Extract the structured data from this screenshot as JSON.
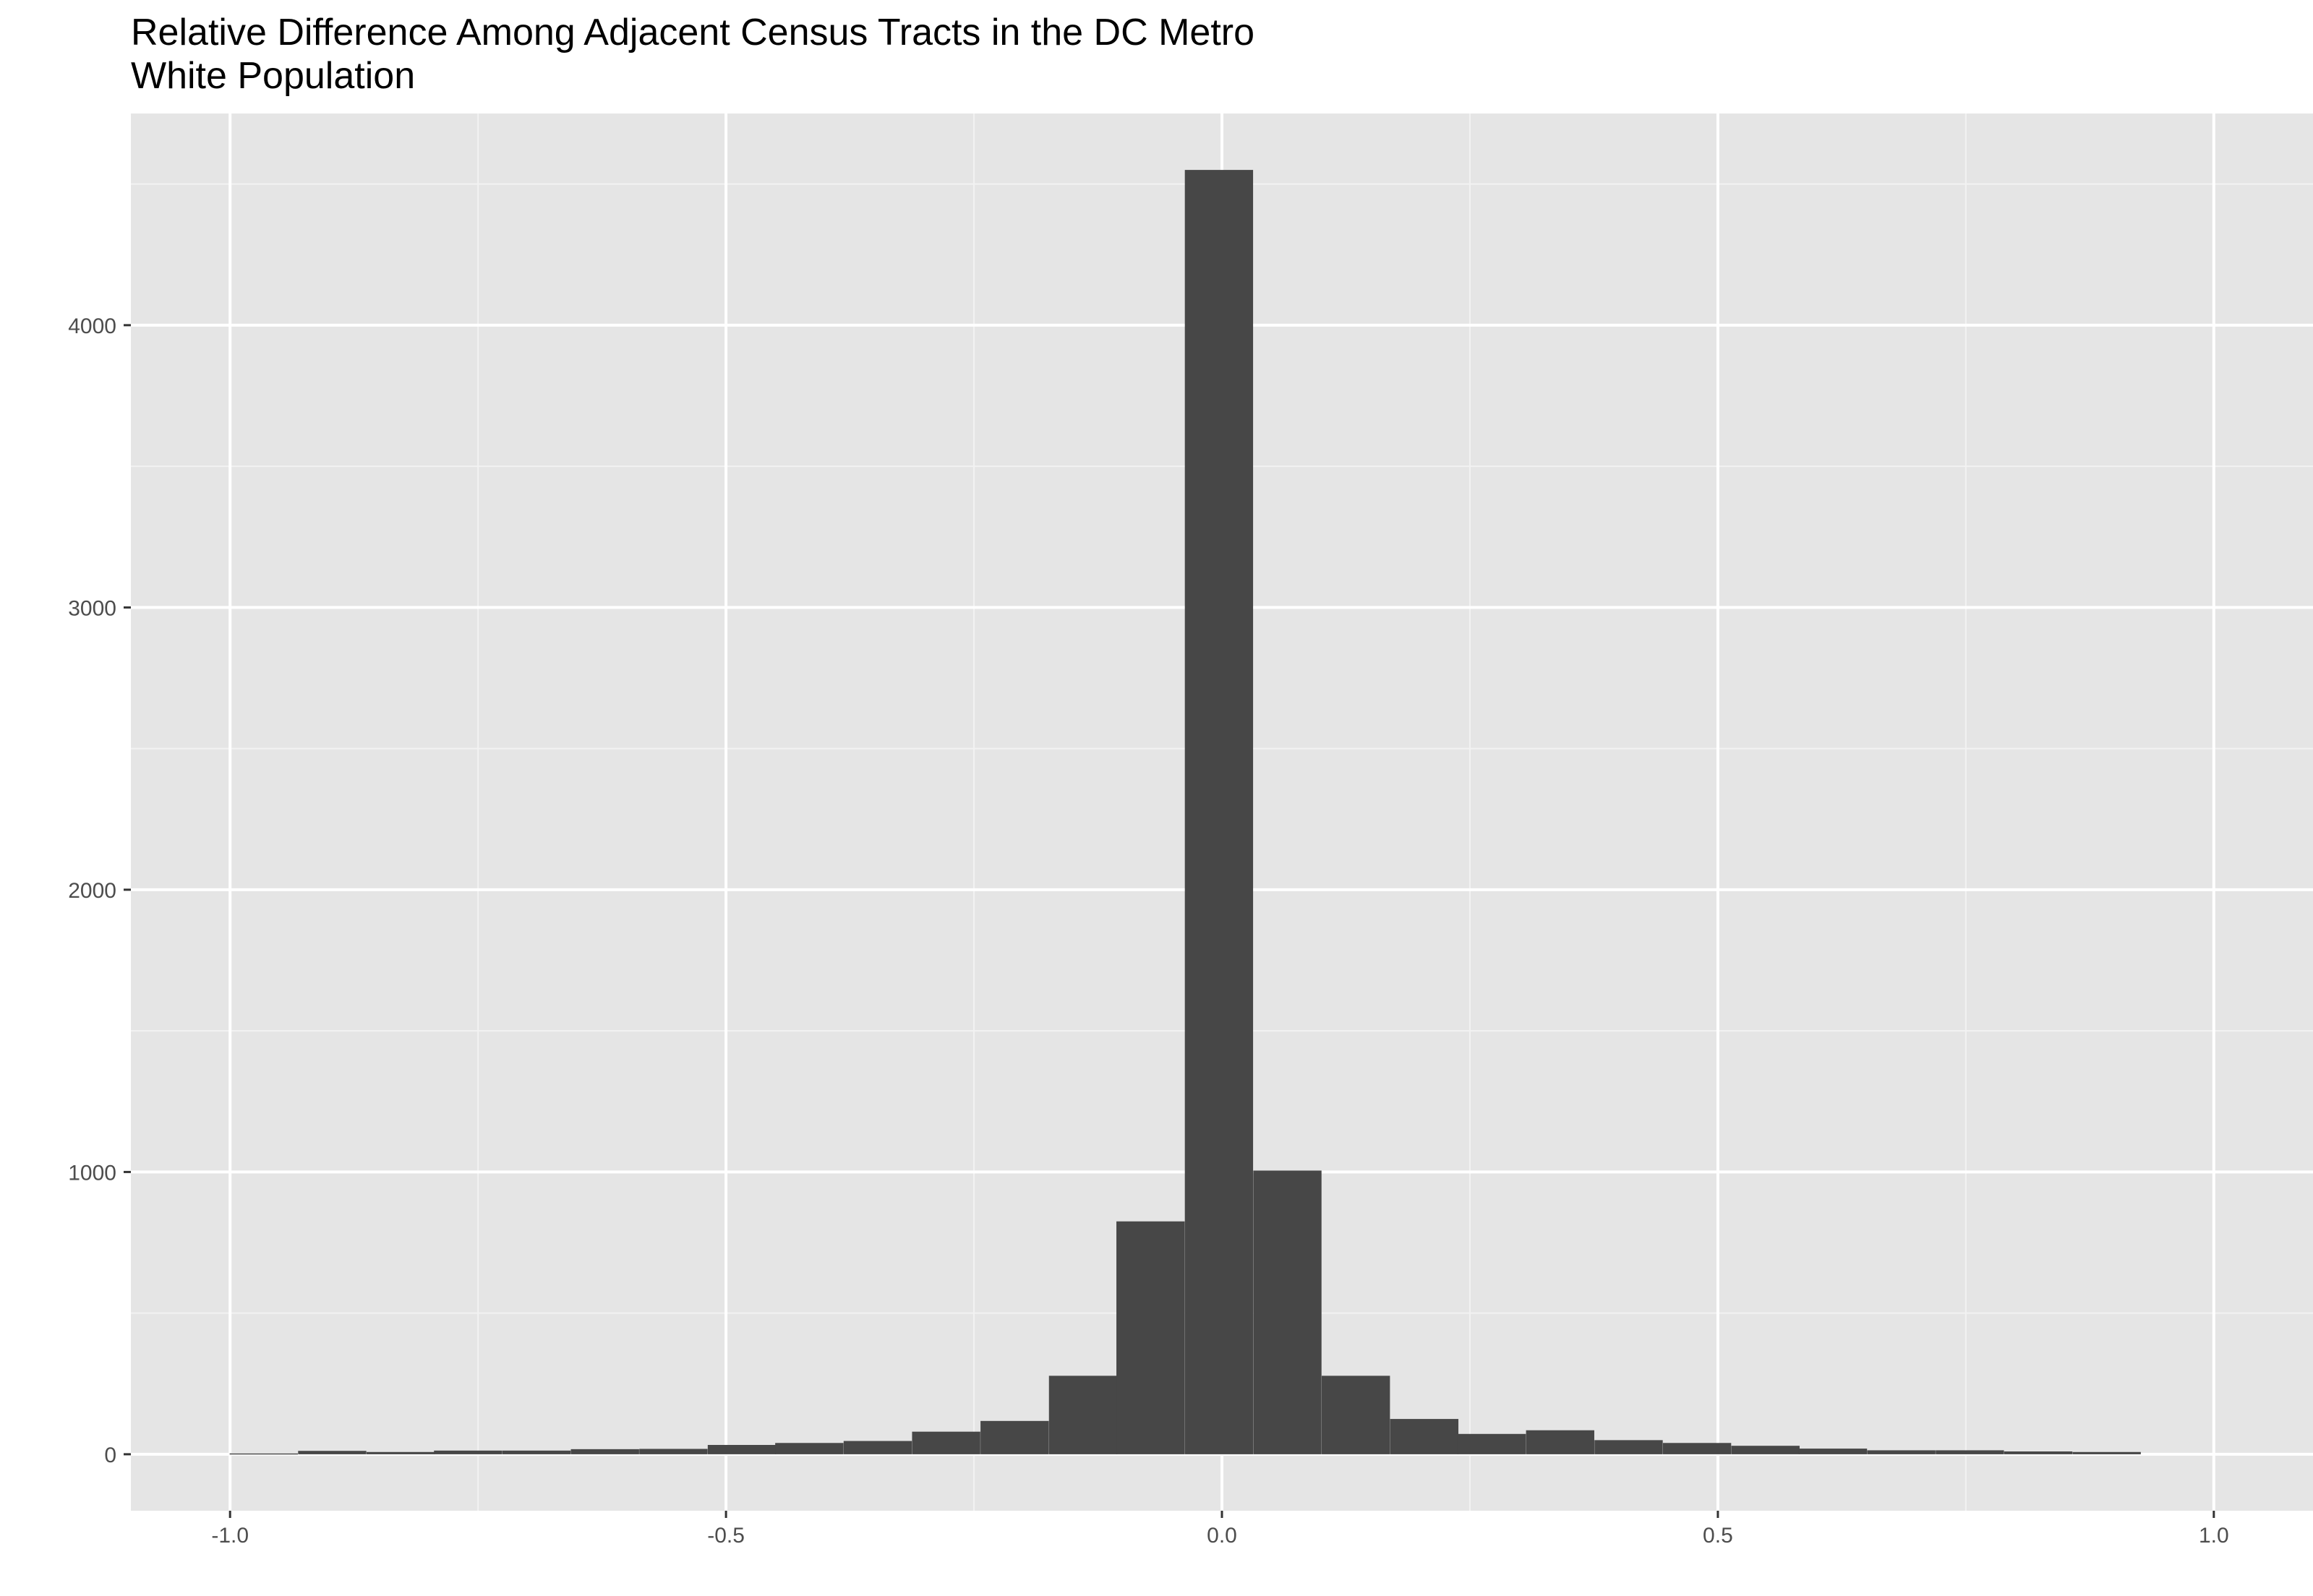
{
  "chart_data": {
    "type": "bar",
    "title": "Relative Difference Among Adjacent Census Tracts in the DC Metro",
    "subtitle": "White  Population",
    "xlabel": "",
    "ylabel": "",
    "xlim": [
      -1.1,
      1.1
    ],
    "ylim": [
      -200,
      4750
    ],
    "grid": true,
    "x_ticks": [
      -1.0,
      -0.5,
      0.0,
      0.5,
      1.0
    ],
    "x_tick_labels": [
      "-1.0",
      "-0.5",
      "0.0",
      "0.5",
      "1.0"
    ],
    "y_ticks": [
      0,
      1000,
      2000,
      3000,
      4000
    ],
    "y_tick_labels": [
      "0",
      "1000",
      "2000",
      "3000",
      "4000"
    ],
    "y_minor_ticks": [
      500,
      1500,
      2500,
      3500,
      4500
    ],
    "x_minor_ticks": [
      -0.75,
      -0.25,
      0.25,
      0.75
    ],
    "bin_width": 0.0688,
    "bins": [
      {
        "x": -0.966,
        "count": 3
      },
      {
        "x": -0.897,
        "count": 12
      },
      {
        "x": -0.828,
        "count": 8
      },
      {
        "x": -0.76,
        "count": 13
      },
      {
        "x": -0.691,
        "count": 13
      },
      {
        "x": -0.622,
        "count": 18
      },
      {
        "x": -0.553,
        "count": 19
      },
      {
        "x": -0.484,
        "count": 33
      },
      {
        "x": -0.416,
        "count": 40
      },
      {
        "x": -0.347,
        "count": 47
      },
      {
        "x": -0.278,
        "count": 80
      },
      {
        "x": -0.209,
        "count": 118
      },
      {
        "x": -0.14,
        "count": 278
      },
      {
        "x": -0.072,
        "count": 825
      },
      {
        "x": -0.003,
        "count": 4550
      },
      {
        "x": 0.066,
        "count": 1005
      },
      {
        "x": 0.135,
        "count": 278
      },
      {
        "x": 0.204,
        "count": 125
      },
      {
        "x": 0.272,
        "count": 72
      },
      {
        "x": 0.341,
        "count": 85
      },
      {
        "x": 0.41,
        "count": 50
      },
      {
        "x": 0.479,
        "count": 40
      },
      {
        "x": 0.548,
        "count": 30
      },
      {
        "x": 0.616,
        "count": 20
      },
      {
        "x": 0.685,
        "count": 14
      },
      {
        "x": 0.754,
        "count": 14
      },
      {
        "x": 0.823,
        "count": 10
      },
      {
        "x": 0.892,
        "count": 8
      }
    ],
    "colors": {
      "panel": "#e5e5e5",
      "grid_major": "#ffffff",
      "grid_minor": "#f2f2f2",
      "bar": "#474747",
      "tick_text": "#4d4d4d",
      "title": "#000000"
    }
  }
}
